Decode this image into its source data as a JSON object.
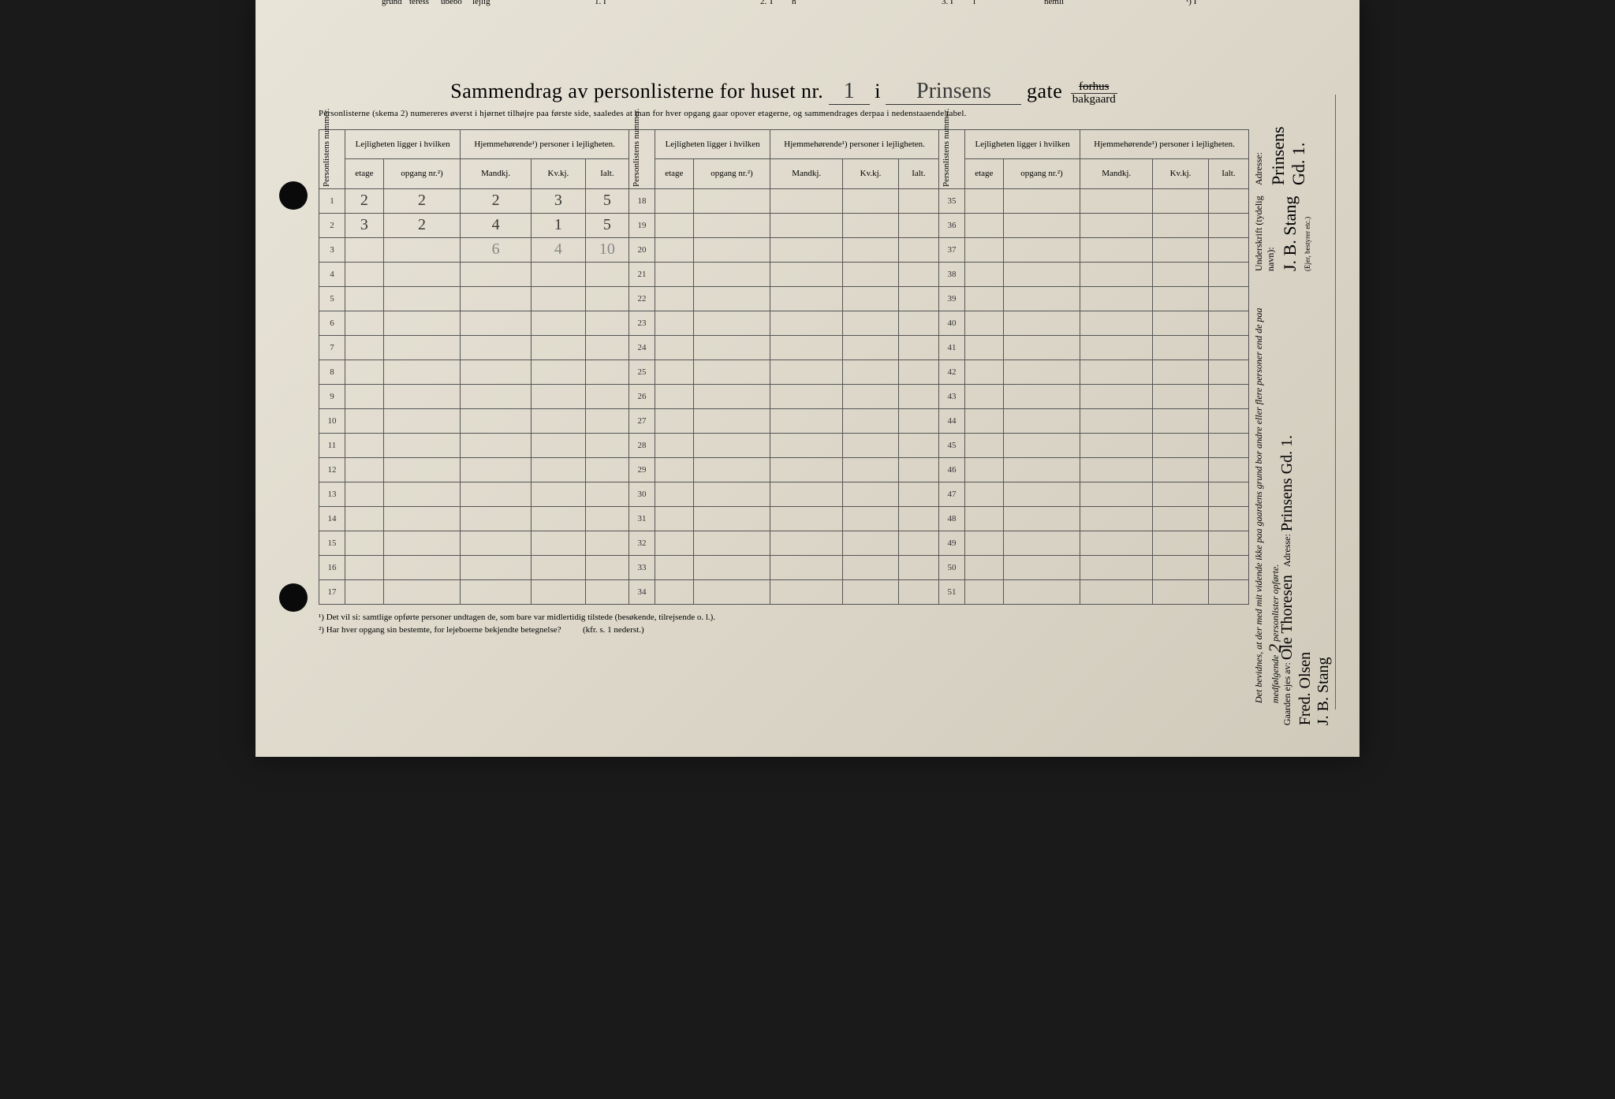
{
  "page": {
    "background_color": "#ddd8ca",
    "ink_color": "#2a2a2a",
    "hand_color": "#3a3a3a"
  },
  "top_fragments": [
    "grund",
    "teress",
    "ubebo",
    "lejlig",
    "1. I",
    "2. T",
    "h",
    "3. I",
    "l",
    "nemli",
    "¹) I"
  ],
  "title": {
    "prefix": "Sammendrag av personlisterne for huset nr.",
    "house_nr": "1",
    "i": "i",
    "street": "Prinsens",
    "gate": "gate",
    "frac_top": "forhus",
    "frac_bot": "bakgaard"
  },
  "subline": "Personlisterne (skema 2) numereres øverst i hjørnet tilhøjre paa første side, saaledes at man for hver opgang gaar opover etagerne, og sammendrages derpaa i nedenstaaende tabel.",
  "headers": {
    "personlist": "Personlistens nummer.",
    "lejlighet": "Lejligheten ligger i hvilken",
    "hjemme": "Hjemmehørende¹) personer i lejligheten.",
    "etage": "etage",
    "opgang": "opgang nr.²)",
    "mandkj": "Mandkj.",
    "kvkj": "Kv.kj.",
    "ialt": "Ialt."
  },
  "rows_left": [
    {
      "n": "1",
      "etage": "2",
      "opgang": "2",
      "m": "2",
      "k": "3",
      "i": "5"
    },
    {
      "n": "2",
      "etage": "3",
      "opgang": "2",
      "m": "4",
      "k": "1",
      "i": "5"
    },
    {
      "n": "3",
      "etage": "",
      "opgang": "",
      "m": "6",
      "k": "4",
      "i": "10",
      "faded": true
    },
    {
      "n": "4"
    },
    {
      "n": "5"
    },
    {
      "n": "6"
    },
    {
      "n": "7"
    },
    {
      "n": "8"
    },
    {
      "n": "9"
    },
    {
      "n": "10"
    },
    {
      "n": "11"
    },
    {
      "n": "12"
    },
    {
      "n": "13"
    },
    {
      "n": "14"
    },
    {
      "n": "15"
    },
    {
      "n": "16"
    },
    {
      "n": "17"
    }
  ],
  "rows_mid_start": 18,
  "rows_mid_end": 34,
  "rows_right_start": 35,
  "rows_right_end": 51,
  "footnotes": {
    "f1": "¹)  Det vil si: samtlige opførte personer undtagen de, som bare var midlertidig tilstede (besøkende, tilrejsende o. l.).",
    "f2": "²)  Har hver opgang sin bestemte, for lejeboerne bekjendte betegnelse?",
    "f2_ref": "(kfr. s. 1 nederst.)"
  },
  "right_side": {
    "attest": "Det bevidnes, at der med mit vidende ikke paa gaardens grund bor andre eller flere personer end de paa medfølgende",
    "attest_count": "2",
    "attest_suffix": "personlister opførte.",
    "underskrift_label": "Underskrift (tydelig navn):",
    "underskrift": "J. B. Stang",
    "eier_note": "(Ejer, bestyrer etc.)",
    "adresse_label": "Adresse:",
    "adresse": "Prinsens Gd. 1."
  },
  "bottom_side": {
    "gaarden_label": "Gaarden ejes av:",
    "owners": "Ole Thoresen\nFred. Olsen\nJ. B. Stang",
    "adresse_label": "Adresse:",
    "adresse": "Prinsens Gd. 1."
  }
}
